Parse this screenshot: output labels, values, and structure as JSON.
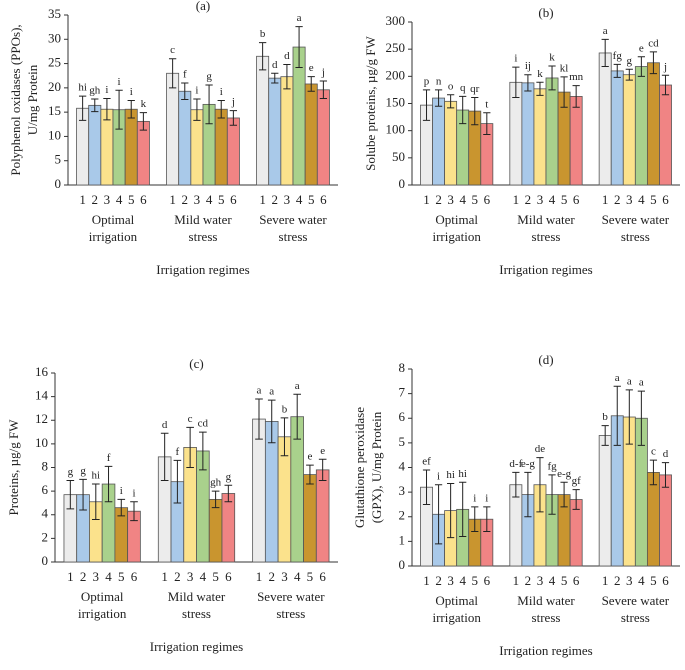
{
  "chart_data": [
    {
      "type": "bar",
      "panel_label": "(a)",
      "ylabel": [
        "Polyphenol oxidases (PPOs),",
        "U/mg Protein"
      ],
      "xlabel": "Irrigation regimes",
      "categories": [
        "Optimal irrigation",
        "Mild water stress",
        "Severe water stress"
      ],
      "ylim": [
        0,
        35
      ],
      "yticks": [
        0,
        5,
        10,
        15,
        20,
        25,
        30,
        35
      ],
      "series": [
        {
          "name": "1",
          "color": "#ececec",
          "values": [
            15.8,
            23,
            26.5
          ],
          "errors": [
            2.5,
            3,
            2.8
          ],
          "letters": [
            "hi",
            "c",
            "b"
          ]
        },
        {
          "name": "2",
          "color": "#a9c9e9",
          "values": [
            16.4,
            19.3,
            22
          ],
          "errors": [
            1.3,
            1.7,
            1
          ],
          "letters": [
            "gh",
            "f",
            "d"
          ]
        },
        {
          "name": "3",
          "color": "#fbe28c",
          "values": [
            15.6,
            15.5,
            22.3
          ],
          "errors": [
            2.2,
            2.2,
            2.5
          ],
          "letters": [
            "i",
            "i",
            "d"
          ]
        },
        {
          "name": "4",
          "color": "#a9d18c",
          "values": [
            15.5,
            16.6,
            28.4
          ],
          "errors": [
            4,
            4,
            4.2
          ],
          "letters": [
            "i",
            "g",
            "a"
          ]
        },
        {
          "name": "5",
          "color": "#c9952f",
          "values": [
            15.6,
            15.6,
            20.8
          ],
          "errors": [
            1.8,
            1.8,
            1.5
          ],
          "letters": [
            "i",
            "i",
            "e"
          ]
        },
        {
          "name": "6",
          "color": "#f08484",
          "values": [
            13.1,
            13.8,
            19.6
          ],
          "errors": [
            1.8,
            1.5,
            1.8
          ],
          "letters": [
            "k",
            "j",
            "j"
          ]
        }
      ]
    },
    {
      "type": "bar",
      "panel_label": "(b)",
      "ylabel": [
        "Solube proteins, µg/g FW"
      ],
      "xlabel": "Irrigation regimes",
      "categories": [
        "Optimal irrigation",
        "Mild water stress",
        "Severe water stress"
      ],
      "ylim": [
        0,
        300
      ],
      "yticks": [
        0,
        50,
        100,
        150,
        200,
        250,
        300
      ],
      "series": [
        {
          "name": "1",
          "color": "#ececec",
          "values": [
            147,
            189,
            243
          ],
          "errors": [
            28,
            28,
            25
          ],
          "letters": [
            "p",
            "i",
            "a"
          ]
        },
        {
          "name": "2",
          "color": "#a9c9e9",
          "values": [
            160,
            188,
            210
          ],
          "errors": [
            15,
            15,
            12
          ],
          "letters": [
            "n",
            "ij",
            "fg"
          ]
        },
        {
          "name": "3",
          "color": "#fbe28c",
          "values": [
            154,
            177,
            203
          ],
          "errors": [
            12,
            12,
            10
          ],
          "letters": [
            "o",
            "k",
            "g"
          ]
        },
        {
          "name": "4",
          "color": "#a9d18c",
          "values": [
            138,
            197,
            218
          ],
          "errors": [
            25,
            22,
            18
          ],
          "letters": [
            "q",
            "k",
            "e"
          ]
        },
        {
          "name": "5",
          "color": "#c9952f",
          "values": [
            136,
            171,
            225
          ],
          "errors": [
            25,
            28,
            20
          ],
          "letters": [
            "qr",
            "kl",
            "cd"
          ]
        },
        {
          "name": "6",
          "color": "#f08484",
          "values": [
            113,
            163,
            184
          ],
          "errors": [
            20,
            20,
            18
          ],
          "letters": [
            "t",
            "mn",
            "j"
          ]
        }
      ]
    },
    {
      "type": "bar",
      "panel_label": "(c)",
      "ylabel": [
        "Proteins, µg/g FW"
      ],
      "xlabel": "Irrigation regimes",
      "categories": [
        "Optimal irrigation",
        "Mild water stress",
        "Severe water stress"
      ],
      "ylim": [
        0,
        16
      ],
      "yticks": [
        0,
        2,
        4,
        6,
        8,
        10,
        12,
        14,
        16
      ],
      "series": [
        {
          "name": "1",
          "color": "#ececec",
          "values": [
            5.7,
            8.9,
            12.1
          ],
          "errors": [
            1.2,
            2,
            1.7
          ],
          "letters": [
            "g",
            "d",
            "a"
          ]
        },
        {
          "name": "2",
          "color": "#a9c9e9",
          "values": [
            5.7,
            6.8,
            11.9
          ],
          "errors": [
            1.3,
            1.8,
            1.8
          ],
          "letters": [
            "g",
            "f",
            "a"
          ]
        },
        {
          "name": "3",
          "color": "#fbe28c",
          "values": [
            5.1,
            9.7,
            10.6
          ],
          "errors": [
            1.5,
            1.7,
            1.6
          ],
          "letters": [
            "hi",
            "c",
            "b"
          ]
        },
        {
          "name": "4",
          "color": "#a9d18c",
          "values": [
            6.6,
            9.4,
            12.3
          ],
          "errors": [
            1.5,
            1.6,
            1.9
          ],
          "letters": [
            "f",
            "cd",
            "a"
          ]
        },
        {
          "name": "5",
          "color": "#c9952f",
          "values": [
            4.6,
            5.3,
            7.4
          ],
          "errors": [
            0.7,
            0.7,
            0.8
          ],
          "letters": [
            "i",
            "gh",
            "e"
          ]
        },
        {
          "name": "6",
          "color": "#f08484",
          "values": [
            4.3,
            5.8,
            7.8
          ],
          "errors": [
            0.8,
            0.7,
            0.9
          ],
          "letters": [
            "i",
            "g",
            "e"
          ]
        }
      ]
    },
    {
      "type": "bar",
      "panel_label": "(d)",
      "ylabel": [
        "Glutathione peroxidase",
        "(GPX), U/mg Protein"
      ],
      "xlabel": "Irrigation regimes",
      "categories": [
        "Optimal irrigation",
        "Mild water stress",
        "Severe water stress"
      ],
      "ylim": [
        0,
        8
      ],
      "yticks": [
        0,
        1,
        2,
        3,
        4,
        5,
        6,
        7,
        8
      ],
      "series": [
        {
          "name": "1",
          "color": "#ececec",
          "values": [
            3.2,
            3.3,
            5.3
          ],
          "errors": [
            0.7,
            0.5,
            0.4
          ],
          "letters": [
            "ef",
            "d-f",
            "b"
          ]
        },
        {
          "name": "2",
          "color": "#a9c9e9",
          "values": [
            2.1,
            2.9,
            6.1
          ],
          "errors": [
            1.2,
            0.9,
            1.2
          ],
          "letters": [
            "i",
            "e-g",
            "a"
          ]
        },
        {
          "name": "3",
          "color": "#fbe28c",
          "values": [
            2.25,
            3.3,
            6.05
          ],
          "errors": [
            1.1,
            1.1,
            1.1
          ],
          "letters": [
            "hi",
            "de",
            "a"
          ]
        },
        {
          "name": "4",
          "color": "#a9d18c",
          "values": [
            2.3,
            2.9,
            6.0
          ],
          "errors": [
            1.1,
            0.8,
            1.1
          ],
          "letters": [
            "hi",
            "fg",
            "a"
          ]
        },
        {
          "name": "5",
          "color": "#c9952f",
          "values": [
            1.9,
            2.9,
            3.8
          ],
          "errors": [
            0.5,
            0.5,
            0.5
          ],
          "letters": [
            "i",
            "e-g",
            "c"
          ]
        },
        {
          "name": "6",
          "color": "#f08484",
          "values": [
            1.9,
            2.7,
            3.7
          ],
          "errors": [
            0.5,
            0.4,
            0.5
          ],
          "letters": [
            "i",
            "gf",
            "d"
          ]
        }
      ]
    }
  ]
}
